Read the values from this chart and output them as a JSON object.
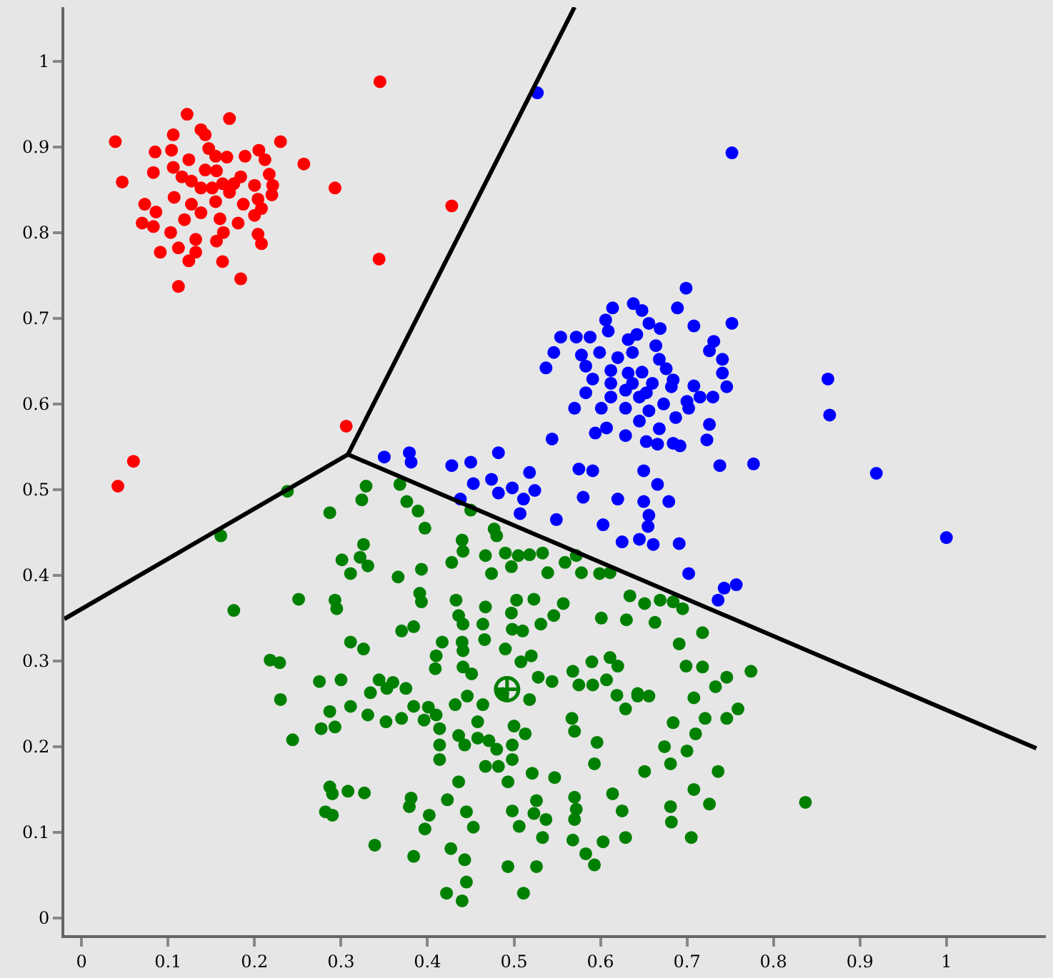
{
  "chart_data": {
    "type": "scatter",
    "xlim": [
      -0.02,
      1.115
    ],
    "ylim": [
      -0.02,
      1.063
    ],
    "xticks": [
      0,
      0.1,
      0.2,
      0.3,
      0.4,
      0.5,
      0.6,
      0.7,
      0.8,
      0.9,
      1
    ],
    "yticks": [
      0,
      0.1,
      0.2,
      0.3,
      0.4,
      0.5,
      0.6,
      0.7,
      0.8,
      0.9,
      1
    ],
    "series": [
      {
        "marker": "circle",
        "color": "#ff0000",
        "x": [
          0.122,
          0.171,
          0.039,
          0.106,
          0.138,
          0.143,
          0.23,
          0.257,
          0.293,
          0.428,
          0.344,
          0.345,
          0.047,
          0.085,
          0.104,
          0.124,
          0.147,
          0.155,
          0.168,
          0.189,
          0.205,
          0.212,
          0.083,
          0.106,
          0.116,
          0.127,
          0.138,
          0.156,
          0.163,
          0.184,
          0.2,
          0.217,
          0.221,
          0.22,
          0.073,
          0.086,
          0.107,
          0.127,
          0.138,
          0.155,
          0.171,
          0.187,
          0.204,
          0.208,
          0.07,
          0.083,
          0.103,
          0.119,
          0.16,
          0.181,
          0.2,
          0.204,
          0.208,
          0.132,
          0.156,
          0.164,
          0.091,
          0.112,
          0.124,
          0.132,
          0.163,
          0.184,
          0.112,
          0.306,
          0.06,
          0.042,
          0.143,
          0.151,
          0.176
        ],
        "values": [
          0.938,
          0.933,
          0.906,
          0.914,
          0.92,
          0.914,
          0.906,
          0.88,
          0.852,
          0.831,
          0.769,
          0.976,
          0.859,
          0.894,
          0.896,
          0.885,
          0.898,
          0.889,
          0.888,
          0.889,
          0.896,
          0.885,
          0.87,
          0.876,
          0.865,
          0.86,
          0.852,
          0.872,
          0.857,
          0.865,
          0.855,
          0.868,
          0.855,
          0.844,
          0.833,
          0.824,
          0.841,
          0.833,
          0.823,
          0.836,
          0.847,
          0.833,
          0.839,
          0.828,
          0.811,
          0.807,
          0.8,
          0.815,
          0.816,
          0.811,
          0.82,
          0.798,
          0.787,
          0.792,
          0.79,
          0.8,
          0.777,
          0.782,
          0.767,
          0.777,
          0.766,
          0.746,
          0.737,
          0.574,
          0.533,
          0.504,
          0.873,
          0.852,
          0.857
        ]
      },
      {
        "marker": "circle",
        "color": "#0000ff",
        "x": [
          0.527,
          0.752,
          0.699,
          0.614,
          0.638,
          0.648,
          0.689,
          0.752,
          0.606,
          0.656,
          0.669,
          0.708,
          0.554,
          0.572,
          0.588,
          0.609,
          0.632,
          0.642,
          0.664,
          0.546,
          0.578,
          0.599,
          0.62,
          0.637,
          0.668,
          0.731,
          0.726,
          0.741,
          0.537,
          0.583,
          0.612,
          0.632,
          0.648,
          0.676,
          0.741,
          0.591,
          0.612,
          0.637,
          0.66,
          0.684,
          0.708,
          0.746,
          0.583,
          0.629,
          0.653,
          0.682,
          0.73,
          0.715,
          0.612,
          0.645,
          0.7,
          0.673,
          0.57,
          0.601,
          0.629,
          0.656,
          0.702,
          0.687,
          0.645,
          0.668,
          0.726,
          0.607,
          0.594,
          0.629,
          0.653,
          0.666,
          0.684,
          0.692,
          0.723,
          0.544,
          0.863,
          0.865,
          0.919,
          1.0,
          0.482,
          0.428,
          0.45,
          0.453,
          0.474,
          0.482,
          0.498,
          0.518,
          0.524,
          0.511,
          0.438,
          0.507,
          0.549,
          0.575,
          0.591,
          0.58,
          0.62,
          0.603,
          0.625,
          0.65,
          0.666,
          0.65,
          0.679,
          0.656,
          0.655,
          0.645,
          0.661,
          0.691,
          0.738,
          0.777,
          0.702,
          0.743,
          0.757,
          0.736,
          0.35,
          0.379,
          0.381
        ],
        "values": [
          0.963,
          0.893,
          0.735,
          0.712,
          0.717,
          0.709,
          0.712,
          0.694,
          0.698,
          0.694,
          0.688,
          0.691,
          0.678,
          0.678,
          0.678,
          0.685,
          0.675,
          0.681,
          0.668,
          0.66,
          0.657,
          0.66,
          0.654,
          0.66,
          0.652,
          0.673,
          0.662,
          0.652,
          0.642,
          0.644,
          0.639,
          0.636,
          0.637,
          0.641,
          0.636,
          0.629,
          0.624,
          0.624,
          0.624,
          0.628,
          0.621,
          0.62,
          0.613,
          0.616,
          0.613,
          0.62,
          0.608,
          0.608,
          0.608,
          0.608,
          0.603,
          0.6,
          0.595,
          0.595,
          0.595,
          0.592,
          0.595,
          0.584,
          0.58,
          0.571,
          0.576,
          0.572,
          0.566,
          0.563,
          0.556,
          0.553,
          0.554,
          0.551,
          0.558,
          0.559,
          0.629,
          0.587,
          0.519,
          0.444,
          0.543,
          0.528,
          0.532,
          0.507,
          0.512,
          0.496,
          0.502,
          0.52,
          0.499,
          0.489,
          0.489,
          0.472,
          0.465,
          0.524,
          0.522,
          0.491,
          0.489,
          0.459,
          0.439,
          0.522,
          0.506,
          0.486,
          0.486,
          0.47,
          0.457,
          0.442,
          0.436,
          0.437,
          0.528,
          0.53,
          0.402,
          0.385,
          0.389,
          0.371,
          0.538,
          0.543,
          0.532
        ]
      },
      {
        "marker": "circle",
        "color": "#008000",
        "x": [
          0.238,
          0.161,
          0.329,
          0.368,
          0.324,
          0.287,
          0.376,
          0.389,
          0.397,
          0.45,
          0.44,
          0.477,
          0.48,
          0.326,
          0.301,
          0.322,
          0.331,
          0.311,
          0.366,
          0.393,
          0.428,
          0.441,
          0.467,
          0.49,
          0.505,
          0.518,
          0.533,
          0.497,
          0.474,
          0.539,
          0.559,
          0.572,
          0.578,
          0.599,
          0.611,
          0.251,
          0.176,
          0.293,
          0.295,
          0.391,
          0.393,
          0.433,
          0.467,
          0.503,
          0.523,
          0.557,
          0.436,
          0.441,
          0.464,
          0.497,
          0.531,
          0.546,
          0.601,
          0.634,
          0.651,
          0.63,
          0.37,
          0.384,
          0.417,
          0.44,
          0.441,
          0.466,
          0.49,
          0.498,
          0.51,
          0.311,
          0.326,
          0.41,
          0.409,
          0.441,
          0.451,
          0.508,
          0.52,
          0.528,
          0.544,
          0.568,
          0.59,
          0.611,
          0.62,
          0.575,
          0.591,
          0.607,
          0.619,
          0.643,
          0.629,
          0.218,
          0.229,
          0.275,
          0.3,
          0.23,
          0.344,
          0.36,
          0.334,
          0.353,
          0.375,
          0.311,
          0.287,
          0.331,
          0.352,
          0.37,
          0.384,
          0.401,
          0.41,
          0.396,
          0.432,
          0.446,
          0.464,
          0.487,
          0.518,
          0.458,
          0.277,
          0.293,
          0.244,
          0.414,
          0.414,
          0.414,
          0.436,
          0.443,
          0.458,
          0.471,
          0.48,
          0.467,
          0.482,
          0.498,
          0.5,
          0.513,
          0.498,
          0.493,
          0.436,
          0.521,
          0.547,
          0.567,
          0.57,
          0.596,
          0.593,
          0.651,
          0.287,
          0.29,
          0.308,
          0.327,
          0.282,
          0.29,
          0.381,
          0.379,
          0.402,
          0.397,
          0.423,
          0.445,
          0.453,
          0.498,
          0.506,
          0.523,
          0.537,
          0.526,
          0.533,
          0.57,
          0.572,
          0.57,
          0.568,
          0.583,
          0.593,
          0.603,
          0.614,
          0.625,
          0.629,
          0.339,
          0.384,
          0.427,
          0.443,
          0.445,
          0.422,
          0.44,
          0.493,
          0.526,
          0.511,
          0.669,
          0.684,
          0.695,
          0.663,
          0.718,
          0.691,
          0.699,
          0.718,
          0.774,
          0.746,
          0.733,
          0.708,
          0.643,
          0.656,
          0.759,
          0.746,
          0.721,
          0.684,
          0.71,
          0.674,
          0.7,
          0.681,
          0.736,
          0.708,
          0.726,
          0.681,
          0.682,
          0.705,
          0.837
        ],
        "values": [
          0.498,
          0.446,
          0.504,
          0.506,
          0.488,
          0.473,
          0.486,
          0.475,
          0.455,
          0.476,
          0.441,
          0.454,
          0.446,
          0.436,
          0.418,
          0.421,
          0.411,
          0.402,
          0.398,
          0.407,
          0.415,
          0.428,
          0.423,
          0.426,
          0.423,
          0.424,
          0.426,
          0.41,
          0.402,
          0.403,
          0.415,
          0.423,
          0.403,
          0.402,
          0.403,
          0.372,
          0.359,
          0.371,
          0.361,
          0.379,
          0.369,
          0.371,
          0.363,
          0.371,
          0.372,
          0.367,
          0.353,
          0.343,
          0.343,
          0.356,
          0.343,
          0.353,
          0.35,
          0.376,
          0.367,
          0.348,
          0.335,
          0.34,
          0.322,
          0.322,
          0.312,
          0.325,
          0.314,
          0.337,
          0.335,
          0.322,
          0.314,
          0.306,
          0.291,
          0.293,
          0.285,
          0.299,
          0.306,
          0.281,
          0.276,
          0.288,
          0.299,
          0.304,
          0.294,
          0.272,
          0.272,
          0.278,
          0.26,
          0.262,
          0.244,
          0.301,
          0.298,
          0.276,
          0.278,
          0.255,
          0.278,
          0.275,
          0.263,
          0.268,
          0.268,
          0.247,
          0.241,
          0.237,
          0.229,
          0.233,
          0.247,
          0.246,
          0.237,
          0.231,
          0.249,
          0.259,
          0.249,
          0.262,
          0.255,
          0.229,
          0.221,
          0.223,
          0.208,
          0.221,
          0.202,
          0.185,
          0.213,
          0.202,
          0.21,
          0.207,
          0.197,
          0.177,
          0.177,
          0.202,
          0.224,
          0.215,
          0.185,
          0.159,
          0.159,
          0.169,
          0.164,
          0.233,
          0.218,
          0.205,
          0.18,
          0.171,
          0.153,
          0.145,
          0.148,
          0.146,
          0.124,
          0.12,
          0.14,
          0.13,
          0.12,
          0.104,
          0.138,
          0.124,
          0.106,
          0.125,
          0.107,
          0.122,
          0.115,
          0.137,
          0.094,
          0.141,
          0.127,
          0.115,
          0.091,
          0.075,
          0.062,
          0.089,
          0.145,
          0.125,
          0.094,
          0.085,
          0.072,
          0.081,
          0.068,
          0.042,
          0.029,
          0.02,
          0.06,
          0.06,
          0.029,
          0.371,
          0.369,
          0.361,
          0.345,
          0.333,
          0.32,
          0.294,
          0.293,
          0.288,
          0.281,
          0.27,
          0.257,
          0.259,
          0.259,
          0.244,
          0.233,
          0.233,
          0.228,
          0.215,
          0.2,
          0.195,
          0.18,
          0.171,
          0.15,
          0.133,
          0.13,
          0.112,
          0.094,
          0.135
        ]
      },
      {
        "marker": "cross",
        "color": "#008000",
        "x": [
          0.492
        ],
        "values": [
          0.267
        ]
      },
      {
        "type": "line",
        "color": "#000000",
        "x": [
          -0.02,
          0.308,
          1.104
        ],
        "values": [
          0.349,
          0.541,
          0.198
        ]
      },
      {
        "type": "line",
        "color": "#000000",
        "x": [
          0.308,
          0.57
        ],
        "values": [
          0.541,
          1.063
        ]
      }
    ]
  }
}
